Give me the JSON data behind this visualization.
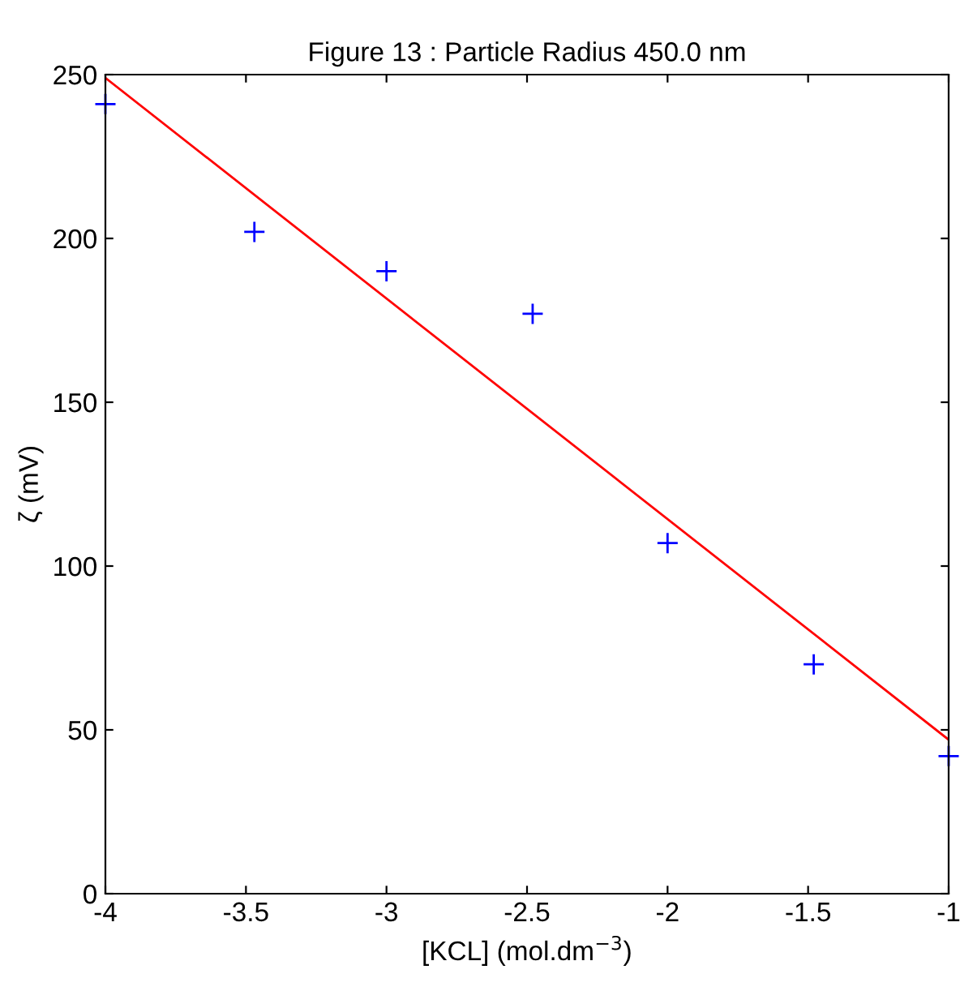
{
  "chart_data": {
    "type": "scatter",
    "title": "Figure 13 : Particle Radius 450.0 nm",
    "xlabel": "[KCL] (mol.dm$^{−3}$)",
    "ylabel": "ζ (mV)",
    "x": [
      -4,
      -3.47,
      -3,
      -2.48,
      -2,
      -1.48,
      -1
    ],
    "series": [
      {
        "color": "#0000ff",
        "marker": "cross",
        "values": [
          241,
          202,
          190,
          177,
          107,
          70,
          42
        ]
      },
      {
        "type": "line",
        "color": "#ff0000",
        "marker": "none",
        "line_style": "solid",
        "x": [
          -4,
          -1
        ],
        "values": [
          249,
          47
        ]
      }
    ],
    "xlim": [
      -4,
      -1
    ],
    "ylim": [
      0,
      250
    ],
    "xticks": [
      -4,
      -3.5,
      -3,
      -2.5,
      -2,
      -1.5,
      -1
    ],
    "yticks": [
      0,
      50,
      100,
      150,
      200,
      250
    ],
    "grid": false,
    "legend": false
  }
}
